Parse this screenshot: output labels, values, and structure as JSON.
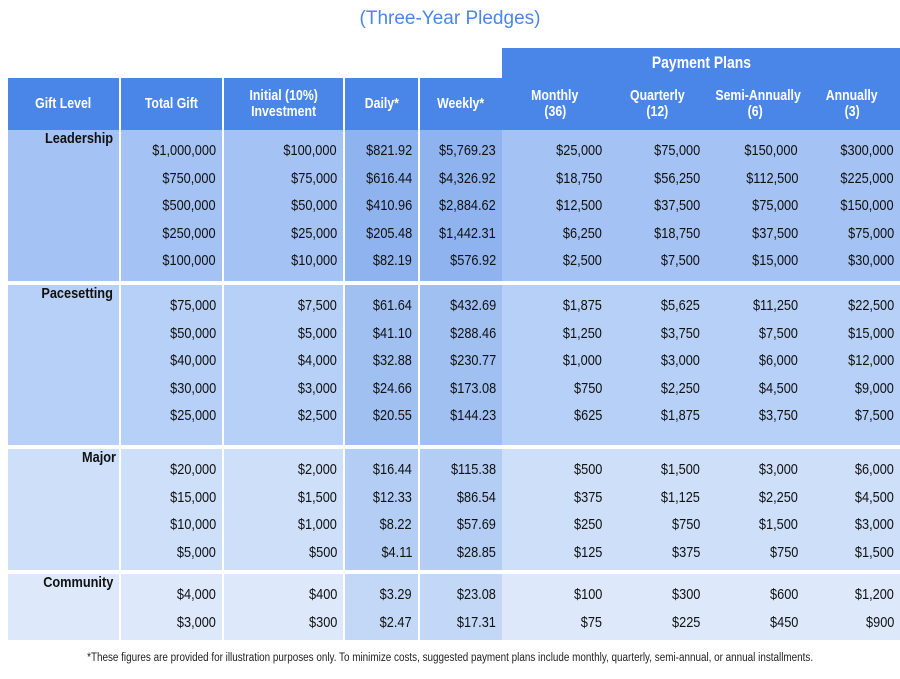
{
  "title": "(Three-Year Pledges)",
  "payment_plans_header": "Payment Plans",
  "columns": [
    {
      "line1": "Gift Level",
      "line2": ""
    },
    {
      "line1": "Total Gift",
      "line2": ""
    },
    {
      "line1": "Initial (10%)",
      "line2": "Investment"
    },
    {
      "line1": "Daily*",
      "line2": ""
    },
    {
      "line1": "Weekly*",
      "line2": ""
    },
    {
      "line1": "Monthly",
      "line2": "(36)"
    },
    {
      "line1": "Quarterly",
      "line2": "(12)"
    },
    {
      "line1": "Semi-Annually",
      "line2": "(6)"
    },
    {
      "line1": "Annually",
      "line2": "(3)"
    }
  ],
  "groups": [
    {
      "level": "Leadership",
      "total": [
        "$1,000,000",
        "$750,000",
        "$500,000",
        "$250,000",
        "$100,000"
      ],
      "initial": [
        "$100,000",
        "$75,000",
        "$50,000",
        "$25,000",
        "$10,000"
      ],
      "daily": [
        "$821.92",
        "$616.44",
        "$410.96",
        "$205.48",
        "$82.19"
      ],
      "weekly": [
        "$5,769.23",
        "$4,326.92",
        "$2,884.62",
        "$1,442.31",
        "$576.92"
      ],
      "monthly": [
        "$25,000",
        "$18,750",
        "$12,500",
        "$6,250",
        "$2,500"
      ],
      "quarterly": [
        "$75,000",
        "$56,250",
        "$37,500",
        "$18,750",
        "$7,500"
      ],
      "semiannual": [
        "$150,000",
        "$112,500",
        "$75,000",
        "$37,500",
        "$15,000"
      ],
      "annual": [
        "$300,000",
        "$225,000",
        "$150,000",
        "$75,000",
        "$30,000"
      ]
    },
    {
      "level": "Pacesetting",
      "total": [
        "$75,000",
        "$50,000",
        "$40,000",
        "$30,000",
        "$25,000"
      ],
      "initial": [
        "$7,500",
        "$5,000",
        "$4,000",
        "$3,000",
        "$2,500"
      ],
      "daily": [
        "$61.64",
        "$41.10",
        "$32.88",
        "$24.66",
        "$20.55"
      ],
      "weekly": [
        "$432.69",
        "$288.46",
        "$230.77",
        "$173.08",
        "$144.23"
      ],
      "monthly": [
        "$1,875",
        "$1,250",
        "$1,000",
        "$750",
        "$625"
      ],
      "quarterly": [
        "$5,625",
        "$3,750",
        "$3,000",
        "$2,250",
        "$1,875"
      ],
      "semiannual": [
        "$11,250",
        "$7,500",
        "$6,000",
        "$4,500",
        "$3,750"
      ],
      "annual": [
        "$22,500",
        "$15,000",
        "$12,000",
        "$9,000",
        "$7,500"
      ]
    },
    {
      "level": "Major",
      "total": [
        "$20,000",
        "$15,000",
        "$10,000",
        "$5,000"
      ],
      "initial": [
        "$2,000",
        "$1,500",
        "$1,000",
        "$500"
      ],
      "daily": [
        "$16.44",
        "$12.33",
        "$8.22",
        "$4.11"
      ],
      "weekly": [
        "$115.38",
        "$86.54",
        "$57.69",
        "$28.85"
      ],
      "monthly": [
        "$500",
        "$375",
        "$250",
        "$125"
      ],
      "quarterly": [
        "$1,500",
        "$1,125",
        "$750",
        "$375"
      ],
      "semiannual": [
        "$3,000",
        "$2,250",
        "$1,500",
        "$750"
      ],
      "annual": [
        "$6,000",
        "$4,500",
        "$3,000",
        "$1,500"
      ]
    },
    {
      "level": "Community",
      "total": [
        "$4,000",
        "$3,000"
      ],
      "initial": [
        "$400",
        "$300"
      ],
      "daily": [
        "$3.29",
        "$2.47"
      ],
      "weekly": [
        "$23.08",
        "$17.31"
      ],
      "monthly": [
        "$100",
        "$75"
      ],
      "quarterly": [
        "$300",
        "$225"
      ],
      "semiannual": [
        "$600",
        "$450"
      ],
      "annual": [
        "$1,200",
        "$900"
      ]
    }
  ],
  "footnote": "*These figures are provided for illustration purposes only. To minimize costs, suggested payment plans include monthly, quarterly, semi-annual, or annual installments."
}
